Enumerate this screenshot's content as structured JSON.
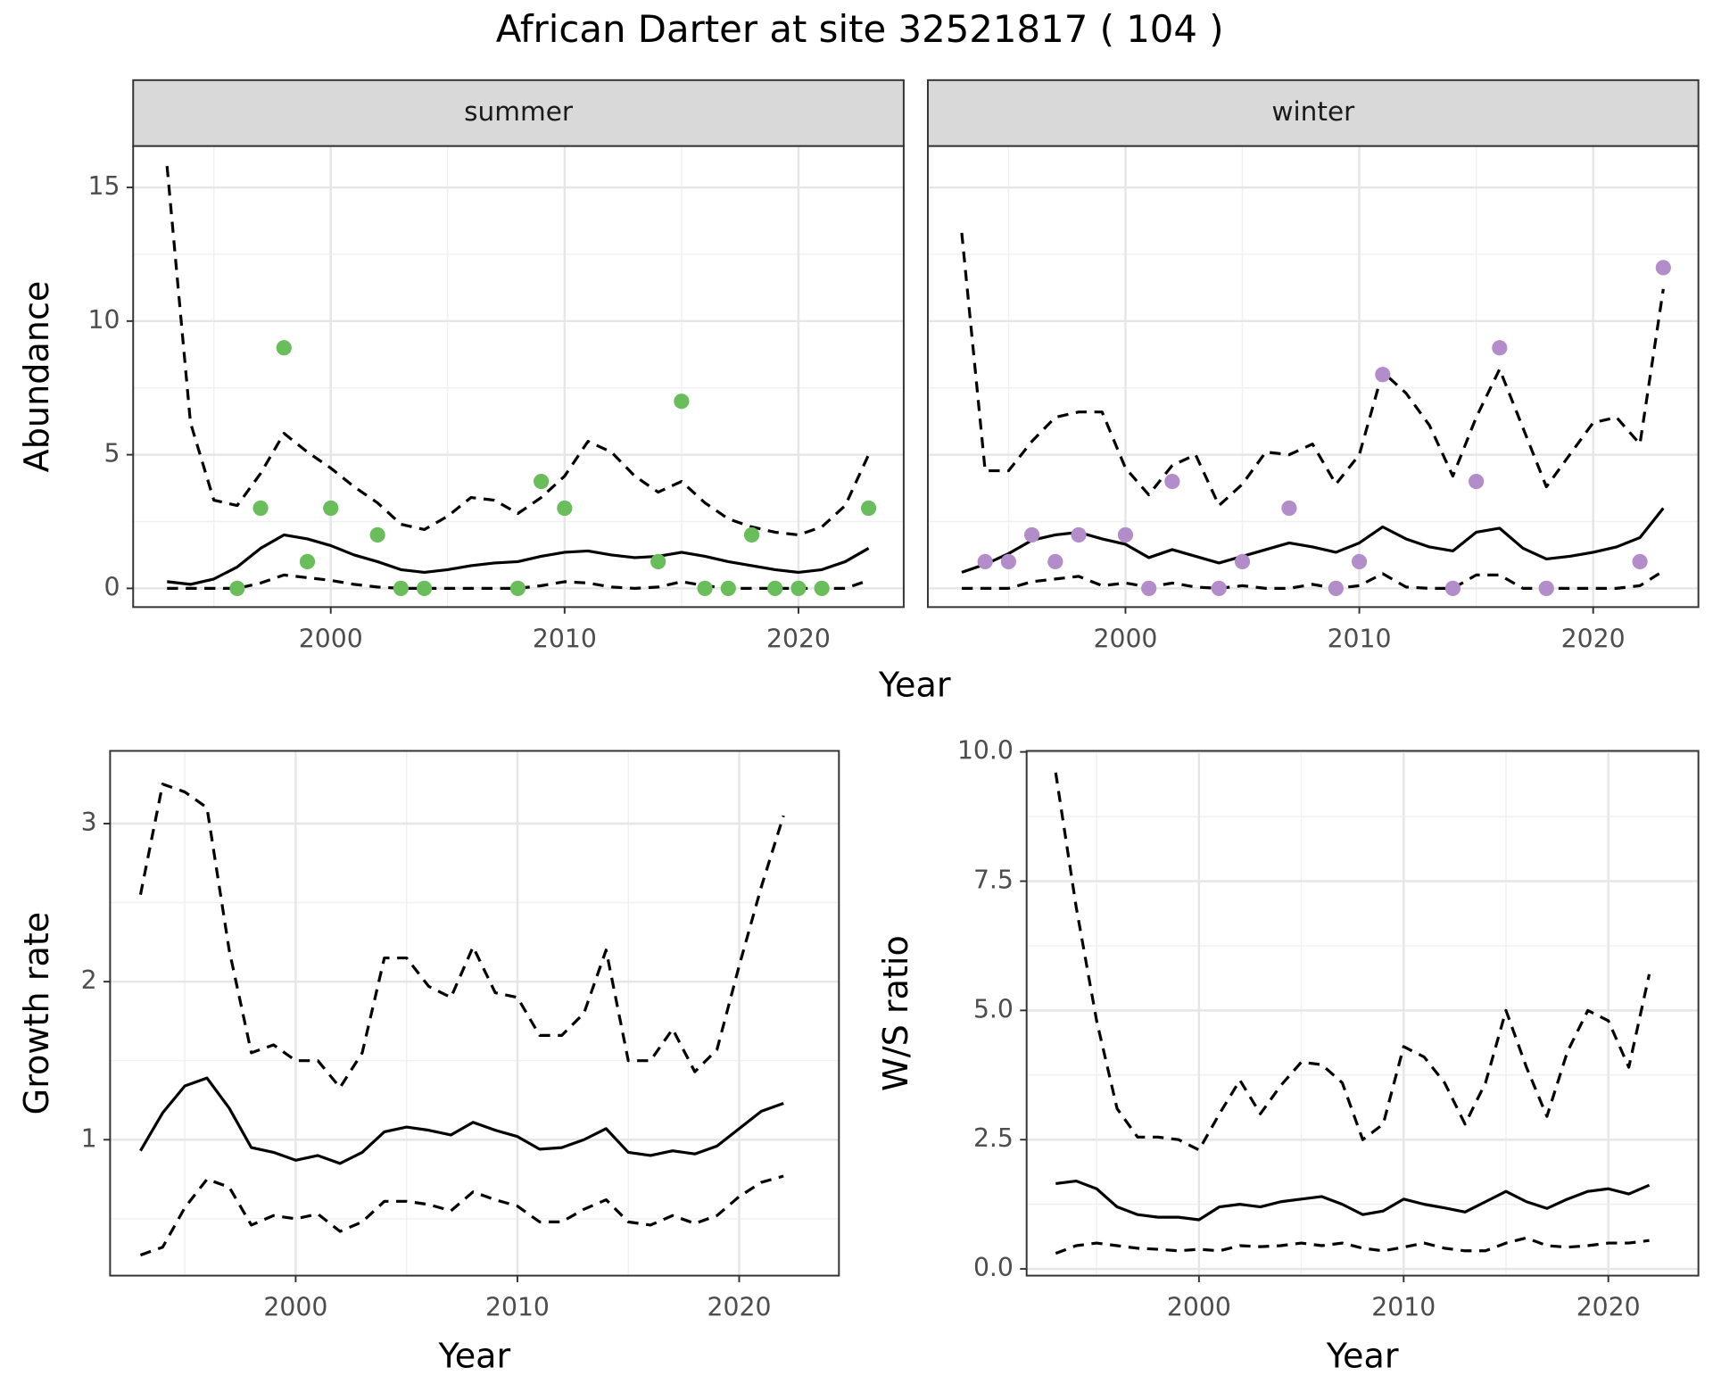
{
  "title": "African Darter at site 32521817 ( 104 )",
  "chart_data": [
    {
      "type": "facet-line",
      "x_label": "Year",
      "y_label": "Abundance",
      "xlim": [
        1991.55,
        2024.5
      ],
      "xticks": [
        2000,
        2010,
        2020
      ],
      "ylim": [
        -0.7,
        16.55
      ],
      "yticks": [
        0,
        5,
        10,
        15
      ],
      "grid": true,
      "facets": [
        {
          "label": "summer",
          "x": [
            1993,
            1994,
            1995,
            1996,
            1997,
            1998,
            1999,
            2000,
            2001,
            2002,
            2003,
            2004,
            2005,
            2006,
            2007,
            2008,
            2009,
            2010,
            2011,
            2012,
            2013,
            2014,
            2015,
            2016,
            2017,
            2018,
            2019,
            2020,
            2021,
            2022,
            2023
          ],
          "series": [
            {
              "color": "#000000",
              "dashed": false,
              "values": [
                0.25,
                0.15,
                0.35,
                0.8,
                1.5,
                2.0,
                1.85,
                1.6,
                1.25,
                1.0,
                0.7,
                0.6,
                0.7,
                0.85,
                0.95,
                1.0,
                1.2,
                1.35,
                1.4,
                1.25,
                1.15,
                1.2,
                1.35,
                1.2,
                1.0,
                0.85,
                0.7,
                0.6,
                0.7,
                1.0,
                1.5
              ]
            },
            {
              "color": "#000000",
              "dashed": true,
              "values": [
                15.8,
                6.2,
                3.3,
                3.1,
                4.3,
                5.8,
                5.1,
                4.5,
                3.8,
                3.2,
                2.4,
                2.2,
                2.7,
                3.4,
                3.3,
                2.8,
                3.4,
                4.2,
                5.5,
                5.1,
                4.2,
                3.6,
                4.0,
                3.2,
                2.6,
                2.3,
                2.1,
                2.0,
                2.3,
                3.1,
                5.0
              ]
            },
            {
              "color": "#000000",
              "dashed": true,
              "values": [
                0,
                0,
                0,
                0,
                0.2,
                0.5,
                0.4,
                0.3,
                0.15,
                0.05,
                0,
                0,
                0,
                0,
                0,
                0,
                0.1,
                0.25,
                0.2,
                0.05,
                0,
                0.05,
                0.25,
                0.1,
                0,
                0,
                0,
                0,
                0,
                0,
                0.3
              ]
            }
          ],
          "points": {
            "color": "#6abd5b",
            "x": [
              1996,
              1997,
              1998,
              1999,
              2000,
              2002,
              2003,
              2004,
              2008,
              2009,
              2010,
              2014,
              2015,
              2016,
              2017,
              2018,
              2019,
              2020,
              2021,
              2023
            ],
            "values": [
              0,
              3,
              9,
              1,
              3,
              2,
              0,
              0,
              0,
              4,
              3,
              1,
              7,
              0,
              0,
              2,
              0,
              0,
              0,
              3
            ]
          }
        },
        {
          "label": "winter",
          "x": [
            1993,
            1994,
            1995,
            1996,
            1997,
            1998,
            1999,
            2000,
            2001,
            2002,
            2003,
            2004,
            2005,
            2006,
            2007,
            2008,
            2009,
            2010,
            2011,
            2012,
            2013,
            2014,
            2015,
            2016,
            2017,
            2018,
            2019,
            2020,
            2021,
            2022,
            2023
          ],
          "series": [
            {
              "color": "#000000",
              "dashed": false,
              "values": [
                0.6,
                0.9,
                1.3,
                1.8,
                2.0,
                2.1,
                1.85,
                1.65,
                1.15,
                1.45,
                1.2,
                0.95,
                1.2,
                1.45,
                1.7,
                1.55,
                1.35,
                1.7,
                2.3,
                1.85,
                1.55,
                1.4,
                2.1,
                2.25,
                1.5,
                1.1,
                1.2,
                1.35,
                1.55,
                1.9,
                3.0
              ]
            },
            {
              "color": "#000000",
              "dashed": true,
              "values": [
                13.3,
                4.4,
                4.4,
                5.5,
                6.4,
                6.6,
                6.6,
                4.5,
                3.5,
                4.6,
                5.0,
                3.1,
                3.9,
                5.1,
                5.0,
                5.4,
                3.9,
                5.0,
                8.1,
                7.3,
                6.1,
                4.2,
                6.4,
                8.2,
                6.0,
                3.8,
                5.0,
                6.2,
                6.4,
                5.4,
                11.2
              ]
            },
            {
              "color": "#000000",
              "dashed": true,
              "values": [
                0,
                0,
                0,
                0.25,
                0.35,
                0.45,
                0.1,
                0.2,
                0.05,
                0.2,
                0.05,
                0,
                0.1,
                0,
                0,
                0.15,
                0,
                0.1,
                0.55,
                0.05,
                0,
                0,
                0.5,
                0.5,
                0,
                0,
                0,
                0,
                0,
                0.1,
                0.65
              ]
            }
          ],
          "points": {
            "color": "#b28dc9",
            "x": [
              1994,
              1995,
              1996,
              1997,
              1998,
              2000,
              2001,
              2002,
              2004,
              2005,
              2007,
              2009,
              2010,
              2011,
              2014,
              2015,
              2016,
              2018,
              2022,
              2023
            ],
            "values": [
              1,
              1,
              2,
              1,
              2,
              2,
              0,
              4,
              0,
              1,
              3,
              0,
              1,
              8,
              0,
              4,
              9,
              0,
              1,
              12
            ]
          }
        }
      ]
    },
    {
      "type": "line",
      "x_label": "Year",
      "y_label": "Growth rate",
      "xlim": [
        1991.63,
        2024.5
      ],
      "xticks": [
        2000,
        2010,
        2020
      ],
      "ylim": [
        0.14,
        3.46
      ],
      "yticks": [
        1,
        2,
        3
      ],
      "grid": true,
      "x": [
        1993,
        1994,
        1995,
        1996,
        1997,
        1998,
        1999,
        2000,
        2001,
        2002,
        2003,
        2004,
        2005,
        2006,
        2007,
        2008,
        2009,
        2010,
        2011,
        2012,
        2013,
        2014,
        2015,
        2016,
        2017,
        2018,
        2019,
        2020,
        2021,
        2022
      ],
      "series": [
        {
          "color": "#000000",
          "dashed": false,
          "values": [
            0.93,
            1.17,
            1.34,
            1.39,
            1.2,
            0.95,
            0.92,
            0.87,
            0.9,
            0.85,
            0.92,
            1.05,
            1.08,
            1.06,
            1.03,
            1.11,
            1.06,
            1.02,
            0.94,
            0.95,
            1.0,
            1.07,
            0.92,
            0.9,
            0.93,
            0.91,
            0.96,
            1.07,
            1.18,
            1.23
          ]
        },
        {
          "color": "#000000",
          "dashed": true,
          "values": [
            2.55,
            3.25,
            3.2,
            3.1,
            2.2,
            1.55,
            1.6,
            1.5,
            1.5,
            1.33,
            1.55,
            2.15,
            2.15,
            1.97,
            1.9,
            2.22,
            1.93,
            1.9,
            1.66,
            1.66,
            1.8,
            2.2,
            1.5,
            1.5,
            1.7,
            1.43,
            1.57,
            2.1,
            2.6,
            3.05
          ]
        },
        {
          "color": "#000000",
          "dashed": true,
          "values": [
            0.27,
            0.32,
            0.57,
            0.75,
            0.7,
            0.46,
            0.52,
            0.5,
            0.53,
            0.42,
            0.48,
            0.61,
            0.61,
            0.59,
            0.55,
            0.67,
            0.62,
            0.58,
            0.48,
            0.48,
            0.56,
            0.62,
            0.48,
            0.46,
            0.52,
            0.47,
            0.52,
            0.64,
            0.73,
            0.77
          ]
        }
      ]
    },
    {
      "type": "line",
      "x_label": "Year",
      "y_label": "W/S ratio",
      "xlim": [
        1991.58,
        2024.4
      ],
      "xticks": [
        2000,
        2010,
        2020
      ],
      "ylim": [
        -0.13,
        10.02
      ],
      "yticks": [
        {
          "value": 0,
          "label": "0.0"
        },
        2.5,
        {
          "value": 5,
          "label": "5.0"
        },
        7.5,
        {
          "value": 10,
          "label": "10.0"
        }
      ],
      "grid": true,
      "x": [
        1993,
        1994,
        1995,
        1996,
        1997,
        1998,
        1999,
        2000,
        2001,
        2002,
        2003,
        2004,
        2005,
        2006,
        2007,
        2008,
        2009,
        2010,
        2011,
        2012,
        2013,
        2014,
        2015,
        2016,
        2017,
        2018,
        2019,
        2020,
        2021,
        2022
      ],
      "series": [
        {
          "color": "#000000",
          "dashed": false,
          "values": [
            1.65,
            1.7,
            1.55,
            1.2,
            1.05,
            1.0,
            1.0,
            0.95,
            1.2,
            1.25,
            1.2,
            1.3,
            1.35,
            1.4,
            1.25,
            1.05,
            1.12,
            1.35,
            1.25,
            1.18,
            1.1,
            1.3,
            1.5,
            1.3,
            1.17,
            1.35,
            1.5,
            1.55,
            1.45,
            1.62
          ]
        },
        {
          "color": "#000000",
          "dashed": true,
          "values": [
            9.6,
            7.0,
            4.8,
            3.1,
            2.55,
            2.55,
            2.5,
            2.3,
            3.0,
            3.65,
            3.0,
            3.55,
            4.0,
            3.95,
            3.6,
            2.5,
            2.8,
            4.3,
            4.1,
            3.6,
            2.8,
            3.6,
            5.0,
            3.9,
            2.95,
            4.2,
            5.0,
            4.8,
            3.9,
            5.7
          ]
        },
        {
          "color": "#000000",
          "dashed": true,
          "values": [
            0.3,
            0.45,
            0.5,
            0.45,
            0.4,
            0.38,
            0.35,
            0.38,
            0.35,
            0.45,
            0.43,
            0.45,
            0.5,
            0.45,
            0.5,
            0.4,
            0.35,
            0.42,
            0.5,
            0.4,
            0.35,
            0.35,
            0.5,
            0.6,
            0.45,
            0.42,
            0.45,
            0.5,
            0.5,
            0.55
          ]
        }
      ]
    }
  ]
}
